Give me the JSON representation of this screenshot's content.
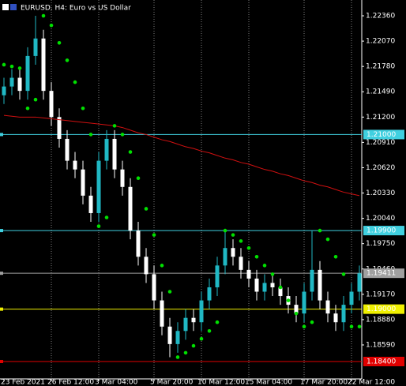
{
  "chart_data": {
    "type": "candlestick",
    "title": "EURUSD, H4:  Euro vs US Dollar",
    "background": "#000000",
    "up_color": "#20b8c4",
    "down_color": "#ffffff",
    "ylim": [
      1.18201,
      1.22541
    ],
    "yticks": [
      {
        "value": 1.2236,
        "label": "1.22360"
      },
      {
        "value": 1.2207,
        "label": "1.22070"
      },
      {
        "value": 1.2178,
        "label": "1.21780"
      },
      {
        "value": 1.2149,
        "label": "1.21490"
      },
      {
        "value": 1.212,
        "label": "1.21200"
      },
      {
        "value": 1.2091,
        "label": "1.20910"
      },
      {
        "value": 1.2062,
        "label": "1.20620"
      },
      {
        "value": 1.2033,
        "label": "1.20330"
      },
      {
        "value": 1.2004,
        "label": "1.20040"
      },
      {
        "value": 1.1975,
        "label": "1.19750"
      },
      {
        "value": 1.1946,
        "label": "1.19460"
      },
      {
        "value": 1.1917,
        "label": "1.19170"
      },
      {
        "value": 1.1888,
        "label": "1.18880"
      },
      {
        "value": 1.1859,
        "label": "1.18590"
      }
    ],
    "categories": [
      "23 Feb 2021",
      null,
      null,
      null,
      null,
      null,
      "26 Feb 12:00",
      null,
      null,
      null,
      null,
      null,
      "3 Mar 04:00",
      null,
      null,
      null,
      null,
      null,
      null,
      "5 Mar 20:00",
      null,
      null,
      null,
      null,
      null,
      "10 Mar 12:00",
      null,
      null,
      null,
      null,
      null,
      "15 Mar 04:00",
      null,
      null,
      null,
      null,
      null,
      null,
      "17 Mar 20:00",
      null,
      null,
      null,
      null,
      null,
      "22 Mar 12:00",
      null
    ],
    "ohlc": [
      [
        1.2145,
        1.2165,
        1.2135,
        1.2155
      ],
      [
        1.2155,
        1.2175,
        1.2145,
        1.2165
      ],
      [
        1.2165,
        1.2175,
        1.214,
        1.215
      ],
      [
        1.215,
        1.22,
        1.214,
        1.219
      ],
      [
        1.219,
        1.2236,
        1.218,
        1.221
      ],
      [
        1.221,
        1.222,
        1.214,
        1.215
      ],
      [
        1.215,
        1.216,
        1.211,
        1.212
      ],
      [
        1.212,
        1.213,
        1.2085,
        1.2095
      ],
      [
        1.2095,
        1.2105,
        1.206,
        1.207
      ],
      [
        1.207,
        1.208,
        1.205,
        1.206
      ],
      [
        1.206,
        1.207,
        1.202,
        1.203
      ],
      [
        1.203,
        1.204,
        1.2,
        1.201
      ],
      [
        1.201,
        1.208,
        1.2,
        1.207
      ],
      [
        1.207,
        1.2105,
        1.206,
        1.2095
      ],
      [
        1.2095,
        1.2105,
        1.205,
        1.206
      ],
      [
        1.206,
        1.207,
        1.203,
        1.204
      ],
      [
        1.204,
        1.205,
        1.198,
        1.199
      ],
      [
        1.199,
        1.2,
        1.195,
        1.196
      ],
      [
        1.196,
        1.197,
        1.193,
        1.194
      ],
      [
        1.194,
        1.195,
        1.19,
        1.191
      ],
      [
        1.191,
        1.192,
        1.187,
        1.188
      ],
      [
        1.188,
        1.189,
        1.1845,
        1.186
      ],
      [
        1.186,
        1.1885,
        1.185,
        1.1875
      ],
      [
        1.1875,
        1.19,
        1.1865,
        1.189
      ],
      [
        1.189,
        1.19,
        1.1875,
        1.1885
      ],
      [
        1.1885,
        1.192,
        1.1875,
        1.191
      ],
      [
        1.191,
        1.1935,
        1.19,
        1.1925
      ],
      [
        1.1925,
        1.196,
        1.1915,
        1.195
      ],
      [
        1.195,
        1.199,
        1.194,
        1.197
      ],
      [
        1.197,
        1.198,
        1.195,
        1.196
      ],
      [
        1.196,
        1.197,
        1.1935,
        1.1945
      ],
      [
        1.1945,
        1.1955,
        1.1925,
        1.1935
      ],
      [
        1.1935,
        1.1945,
        1.191,
        1.192
      ],
      [
        1.192,
        1.194,
        1.191,
        1.193
      ],
      [
        1.193,
        1.194,
        1.1915,
        1.1925
      ],
      [
        1.1925,
        1.1935,
        1.1905,
        1.1915
      ],
      [
        1.1915,
        1.1925,
        1.1895,
        1.1905
      ],
      [
        1.1905,
        1.1915,
        1.1885,
        1.1895
      ],
      [
        1.1895,
        1.193,
        1.1885,
        1.192
      ],
      [
        1.192,
        1.199,
        1.191,
        1.1945
      ],
      [
        1.1945,
        1.1955,
        1.19,
        1.191
      ],
      [
        1.191,
        1.192,
        1.1885,
        1.1895
      ],
      [
        1.1895,
        1.1905,
        1.1875,
        1.1885
      ],
      [
        1.1885,
        1.1915,
        1.1875,
        1.1905
      ],
      [
        1.1905,
        1.193,
        1.1895,
        1.192
      ],
      [
        1.192,
        1.195,
        1.191,
        1.1941
      ]
    ],
    "overlays": [
      {
        "kind": "line",
        "color": "#d01010",
        "values": [
          1.2122,
          1.2121,
          1.212,
          1.212,
          1.212,
          1.2119,
          1.2118,
          1.2117,
          1.2116,
          1.2115,
          1.2114,
          1.2113,
          1.2112,
          1.2111,
          1.211,
          1.2108,
          1.2105,
          1.2102,
          1.21,
          1.2097,
          1.2094,
          1.2092,
          1.2089,
          1.2086,
          1.2084,
          1.2081,
          1.2079,
          1.2076,
          1.2073,
          1.2071,
          1.2068,
          1.2066,
          1.2063,
          1.206,
          1.2058,
          1.2055,
          1.2053,
          1.205,
          1.2047,
          1.2045,
          1.2042,
          1.204,
          1.2037,
          1.2034,
          1.2032,
          1.203
        ]
      },
      {
        "kind": "dots",
        "color": "#00e000",
        "values": [
          1.218,
          1.2178,
          1.2176,
          1.213,
          1.214,
          1.2236,
          1.2225,
          1.2205,
          1.2185,
          1.216,
          1.213,
          1.21,
          1.1995,
          1.2005,
          1.211,
          1.21,
          1.208,
          1.205,
          1.2015,
          1.1985,
          1.195,
          1.192,
          1.1845,
          1.185,
          1.1858,
          1.1866,
          1.1875,
          1.1885,
          1.199,
          1.1985,
          1.1978,
          1.197,
          1.196,
          1.195,
          1.194,
          1.1925,
          1.191,
          1.1895,
          1.188,
          1.1885,
          1.199,
          1.198,
          1.196,
          1.194,
          1.188,
          1.188
        ]
      }
    ],
    "levels": [
      {
        "value": 1.21,
        "label": "1.21000",
        "color": "#40d0e0",
        "text_color": "#000000"
      },
      {
        "value": 1.199,
        "label": "1.19900",
        "color": "#40d0e0",
        "text_color": "#000000"
      },
      {
        "value": 1.19411,
        "label": "1.19411",
        "color": "#a0a0a0",
        "text_color": "#000000"
      },
      {
        "value": 1.19,
        "label": "1.19000",
        "color": "#f0f000",
        "text_color": "#000000"
      },
      {
        "value": 1.184,
        "label": "1.18400",
        "color": "#e00000",
        "text_color": "#ffffff"
      }
    ]
  }
}
